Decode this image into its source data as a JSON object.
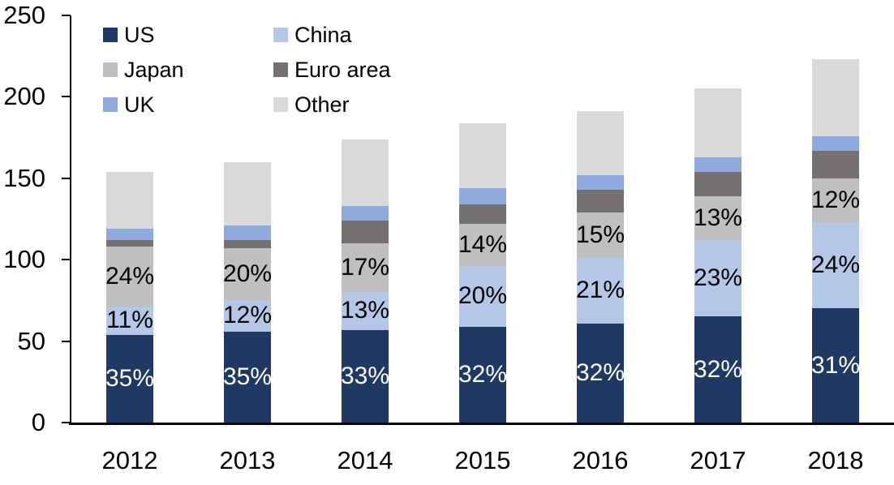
{
  "chart_data": {
    "type": "bar",
    "stacked": true,
    "title": "",
    "xlabel": "",
    "ylabel": "",
    "grid": false,
    "categories": [
      "2012",
      "2013",
      "2014",
      "2015",
      "2016",
      "2017",
      "2018"
    ],
    "series": [
      {
        "name": "US",
        "color": "#1F3864",
        "values": [
          54,
          56,
          57,
          59,
          61,
          65,
          70
        ],
        "labels": [
          "35%",
          "35%",
          "33%",
          "32%",
          "32%",
          "32%",
          "31%"
        ],
        "label_color": "#FFFFFF"
      },
      {
        "name": "China",
        "color": "#B4C7E7",
        "values": [
          17,
          19,
          23,
          37,
          40,
          47,
          53
        ],
        "labels": [
          "11%",
          "12%",
          "13%",
          "20%",
          "21%",
          "23%",
          "24%"
        ],
        "label_color": "#000000"
      },
      {
        "name": "Japan",
        "color": "#BFBFBF",
        "values": [
          37,
          32,
          30,
          26,
          28,
          27,
          27
        ],
        "labels": [
          "24%",
          "20%",
          "17%",
          "14%",
          "15%",
          "13%",
          "12%"
        ],
        "label_color": "#000000"
      },
      {
        "name": "Euro area",
        "color": "#767171",
        "values": [
          4,
          5,
          14,
          12,
          14,
          15,
          17
        ]
      },
      {
        "name": "UK",
        "color": "#8FAADC",
        "values": [
          7,
          9,
          9,
          10,
          9,
          9,
          9
        ]
      },
      {
        "name": "Other",
        "color": "#D9D9D9",
        "values": [
          35,
          39,
          41,
          40,
          39,
          42,
          47
        ]
      }
    ],
    "totals": [
      154,
      160,
      174,
      184,
      191,
      205,
      223
    ],
    "y_axis": {
      "min": 0,
      "max": 250,
      "tick_step": 50,
      "ticks": [
        "0",
        "50",
        "100",
        "150",
        "200",
        "250"
      ]
    },
    "legend": {
      "position": "top-left",
      "columns": 2,
      "order": [
        "US",
        "China",
        "Japan",
        "Euro area",
        "UK",
        "Other"
      ]
    }
  }
}
